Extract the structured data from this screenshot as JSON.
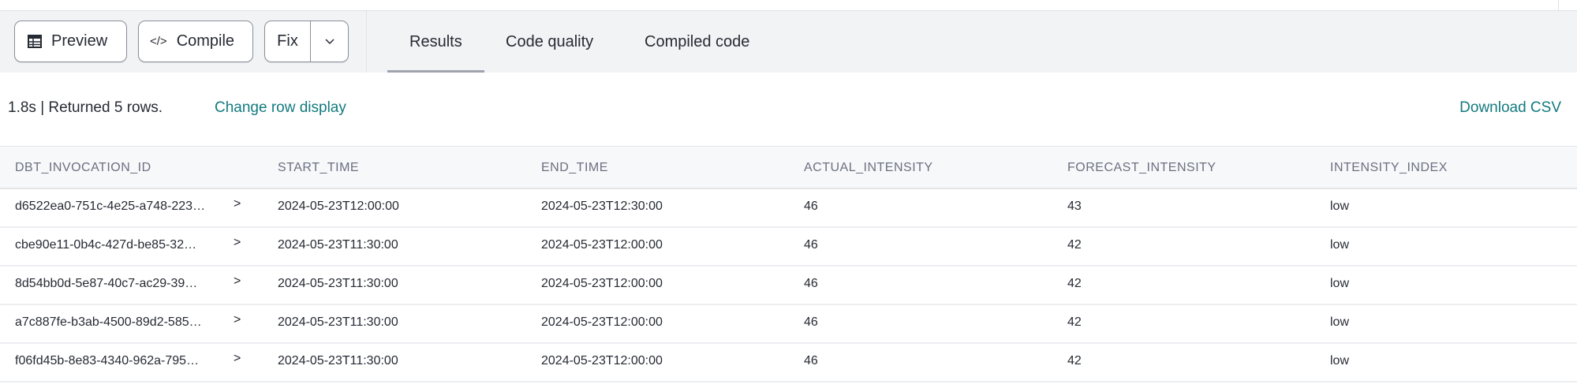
{
  "toolbar": {
    "preview_label": "Preview",
    "compile_label": "Compile",
    "fix_label": "Fix",
    "tabs": [
      {
        "label": "Results",
        "active": true
      },
      {
        "label": "Code quality",
        "active": false
      },
      {
        "label": "Compiled code",
        "active": false
      }
    ]
  },
  "status": {
    "summary": "1.8s | Returned 5 rows.",
    "change_row_display": "Change row display",
    "download_csv": "Download CSV"
  },
  "colors": {
    "link": "#137a7f",
    "toolbar_bg": "#f2f3f5"
  },
  "table": {
    "columns": [
      "DBT_INVOCATION_ID",
      "START_TIME",
      "END_TIME",
      "ACTUAL_INTENSITY",
      "FORECAST_INTENSITY",
      "INTENSITY_INDEX"
    ],
    "rows": [
      [
        "d6522ea0-751c-4e25-a748-223…",
        "2024-05-23T12:00:00",
        "2024-05-23T12:30:00",
        "46",
        "43",
        "low"
      ],
      [
        "cbe90e11-0b4c-427d-be85-32…",
        "2024-05-23T11:30:00",
        "2024-05-23T12:00:00",
        "46",
        "42",
        "low"
      ],
      [
        "8d54bb0d-5e87-40c7-ac29-39…",
        "2024-05-23T11:30:00",
        "2024-05-23T12:00:00",
        "46",
        "42",
        "low"
      ],
      [
        "a7c887fe-b3ab-4500-89d2-585…",
        "2024-05-23T11:30:00",
        "2024-05-23T12:00:00",
        "46",
        "42",
        "low"
      ],
      [
        "f06fd45b-8e83-4340-962a-795…",
        "2024-05-23T11:30:00",
        "2024-05-23T12:00:00",
        "46",
        "42",
        "low"
      ]
    ]
  }
}
